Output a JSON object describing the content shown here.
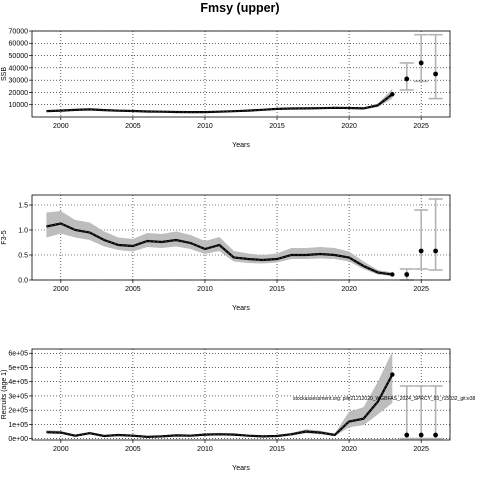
{
  "figure_title": "Fmsy (upper)",
  "colors": {
    "ribbon": "#bdbdbd",
    "line": "#000000",
    "median": "#444444",
    "whisker": "#b3b3b3",
    "grid": "#000000"
  },
  "chart_data": [
    {
      "type": "line",
      "xlabel": "Years",
      "ylabel": "SSB",
      "xlim": [
        1998,
        2027
      ],
      "ylim": [
        0,
        70000
      ],
      "x_ticks": [
        2000,
        2005,
        2010,
        2015,
        2020,
        2025
      ],
      "x_tick_labels": [
        "2000",
        "2005",
        "2010",
        "2015",
        "2020",
        "2025"
      ],
      "y_ticks": [
        10000,
        20000,
        30000,
        40000,
        50000,
        60000,
        70000
      ],
      "y_tick_labels": [
        "10000",
        "20000",
        "30000",
        "40000",
        "50000",
        "60000",
        "70000"
      ],
      "grid": true,
      "series": [
        {
          "x": [
            1999,
            2000,
            2001,
            2002,
            2003,
            2004,
            2005,
            2006,
            2007,
            2008,
            2009,
            2010,
            2011,
            2012,
            2013,
            2014,
            2015,
            2016,
            2017,
            2018,
            2019,
            2020,
            2021,
            2022,
            2023
          ],
          "values": [
            4800,
            5200,
            5800,
            6200,
            5600,
            5100,
            4900,
            4500,
            4300,
            4100,
            4000,
            4000,
            4300,
            4700,
            5200,
            5900,
            6600,
            6900,
            7000,
            7200,
            7500,
            7300,
            7000,
            9500,
            18500
          ],
          "lower": [
            4200,
            4600,
            5200,
            5600,
            5000,
            4600,
            4400,
            4000,
            3800,
            3700,
            3600,
            3600,
            3900,
            4200,
            4700,
            5300,
            6000,
            6200,
            6300,
            6500,
            6800,
            6600,
            6200,
            8200,
            15000
          ],
          "upper": [
            5400,
            5800,
            6400,
            6900,
            6200,
            5700,
            5400,
            5000,
            4800,
            4600,
            4500,
            4500,
            4800,
            5200,
            5800,
            6500,
            7200,
            7500,
            7700,
            7900,
            8200,
            8000,
            7800,
            11000,
            23000
          ]
        }
      ],
      "projections": [
        {
          "x": 2024,
          "median": 31000,
          "low": 22000,
          "high": 44000
        },
        {
          "x": 2025,
          "median": 44000,
          "low": 29000,
          "high": 67000
        },
        {
          "x": 2026,
          "median": 35000,
          "low": 15000,
          "high": 67000
        }
      ]
    },
    {
      "type": "line",
      "xlabel": "Years",
      "ylabel": "F3-5",
      "xlim": [
        1998,
        2027
      ],
      "ylim": [
        0,
        1.7
      ],
      "x_ticks": [
        2000,
        2005,
        2010,
        2015,
        2020,
        2025
      ],
      "x_tick_labels": [
        "2000",
        "2005",
        "2010",
        "2015",
        "2020",
        "2025"
      ],
      "y_ticks": [
        0,
        0.5,
        1.0,
        1.5
      ],
      "y_tick_labels": [
        "0.0",
        "0.5",
        "1.0",
        "1.5"
      ],
      "grid": true,
      "series": [
        {
          "x": [
            1999,
            2000,
            2001,
            2002,
            2003,
            2004,
            2005,
            2006,
            2007,
            2008,
            2009,
            2010,
            2011,
            2012,
            2013,
            2014,
            2015,
            2016,
            2017,
            2018,
            2019,
            2020,
            2021,
            2022,
            2023
          ],
          "values": [
            1.07,
            1.13,
            1.0,
            0.95,
            0.8,
            0.7,
            0.68,
            0.78,
            0.76,
            0.8,
            0.74,
            0.62,
            0.7,
            0.45,
            0.42,
            0.4,
            0.42,
            0.5,
            0.5,
            0.52,
            0.5,
            0.45,
            0.28,
            0.15,
            0.11
          ],
          "lower": [
            0.85,
            0.93,
            0.85,
            0.8,
            0.67,
            0.6,
            0.57,
            0.66,
            0.64,
            0.67,
            0.62,
            0.52,
            0.58,
            0.37,
            0.34,
            0.33,
            0.35,
            0.42,
            0.42,
            0.43,
            0.42,
            0.37,
            0.22,
            0.11,
            0.08
          ],
          "upper": [
            1.35,
            1.38,
            1.2,
            1.15,
            0.97,
            0.85,
            0.82,
            0.94,
            0.92,
            0.97,
            0.9,
            0.78,
            0.86,
            0.58,
            0.53,
            0.5,
            0.53,
            0.64,
            0.64,
            0.66,
            0.64,
            0.57,
            0.37,
            0.2,
            0.15
          ]
        }
      ],
      "projections": [
        {
          "x": 2024,
          "median": 0.11,
          "low": 0.0,
          "high": 0.22
        },
        {
          "x": 2025,
          "median": 0.58,
          "low": 0.22,
          "high": 1.4
        },
        {
          "x": 2026,
          "median": 0.58,
          "low": 0.2,
          "high": 1.62
        }
      ]
    },
    {
      "type": "line",
      "xlabel": "Years",
      "ylabel": "Recruits (age 1)",
      "xlim": [
        1998,
        2027
      ],
      "ylim": [
        -10000,
        630000
      ],
      "x_ticks": [
        2000,
        2005,
        2010,
        2015,
        2020,
        2025
      ],
      "x_tick_labels": [
        "2000",
        "2005",
        "2010",
        "2015",
        "2020",
        "2025"
      ],
      "y_ticks": [
        0,
        100000,
        200000,
        300000,
        400000,
        500000,
        600000
      ],
      "y_tick_labels": [
        "0e+00",
        "1e+05",
        "2e+05",
        "3e+05",
        "4e+05",
        "5e+05",
        "6e+05"
      ],
      "grid": true,
      "annotation": "stockassessment.org: pile21212020_WGBFAS_2024_SPRCY_03_r15032_git:e38",
      "series": [
        {
          "x": [
            1999,
            2000,
            2001,
            2002,
            2003,
            2004,
            2005,
            2006,
            2007,
            2008,
            2009,
            2010,
            2011,
            2012,
            2013,
            2014,
            2015,
            2016,
            2017,
            2018,
            2019,
            2020,
            2021,
            2022,
            2023
          ],
          "values": [
            45000,
            42000,
            20000,
            38000,
            18000,
            25000,
            20000,
            12000,
            15000,
            22000,
            20000,
            28000,
            30000,
            28000,
            20000,
            15000,
            18000,
            30000,
            50000,
            42000,
            25000,
            120000,
            140000,
            260000,
            450000
          ],
          "lower": [
            35000,
            33000,
            14000,
            30000,
            12000,
            19000,
            14000,
            8000,
            10000,
            16000,
            14000,
            21000,
            23000,
            21000,
            14000,
            10000,
            12000,
            22000,
            38000,
            31000,
            17000,
            80000,
            95000,
            170000,
            250000
          ],
          "upper": [
            58000,
            54000,
            28000,
            48000,
            25000,
            33000,
            28000,
            18000,
            22000,
            30000,
            28000,
            37000,
            40000,
            37000,
            28000,
            22000,
            26000,
            40000,
            65000,
            56000,
            35000,
            190000,
            220000,
            400000,
            610000
          ]
        }
      ],
      "projections": [
        {
          "x": 2024,
          "median": 25000,
          "low": 0,
          "high": 370000
        },
        {
          "x": 2025,
          "median": 25000,
          "low": 0,
          "high": 370000
        },
        {
          "x": 2026,
          "median": 25000,
          "low": 0,
          "high": 370000
        }
      ]
    }
  ]
}
